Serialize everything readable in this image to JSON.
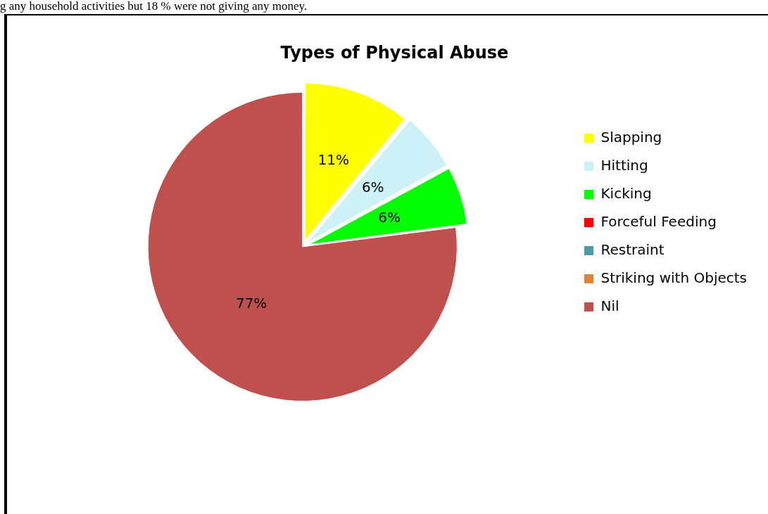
{
  "chart_data": {
    "type": "pie",
    "title": "Types of Physical Abuse",
    "annotations": [
      "g any household activities but 18 % were not giving any money."
    ],
    "categories": [
      "Slapping",
      "Hitting",
      "Kicking",
      "Forceful Feeding",
      "Restraint",
      "Striking with Objects",
      "Nil"
    ],
    "values": [
      11,
      6,
      6,
      0,
      0,
      0,
      77
    ],
    "colors": [
      "#ffff00",
      "#ccf2f8",
      "#00ff00",
      "#ff0000",
      "#4a9aa8",
      "#e0823c",
      "#c0504d"
    ],
    "value_labels": [
      "11%",
      "6%",
      "6%",
      null,
      null,
      null,
      "77%"
    ],
    "legend": "right"
  }
}
